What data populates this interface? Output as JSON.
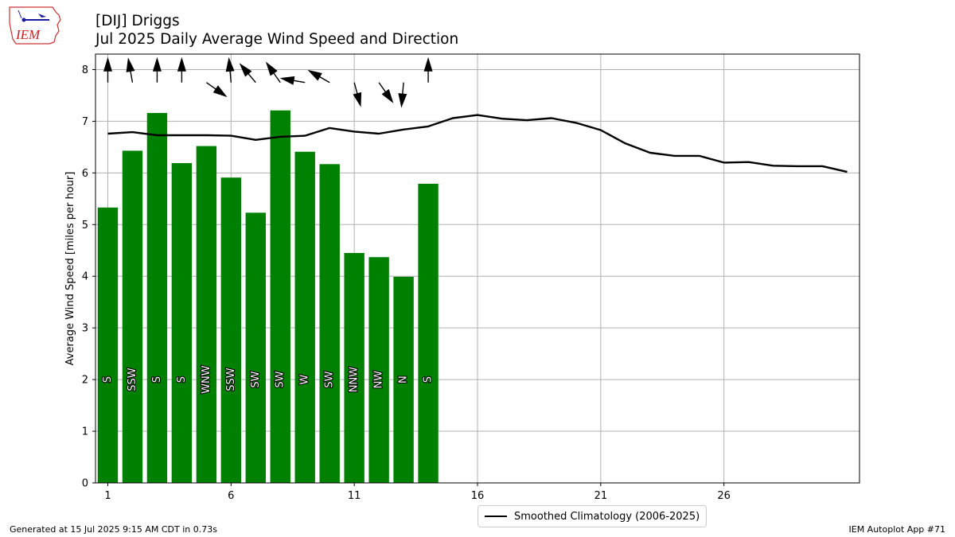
{
  "header": {
    "title_line1": "[DIJ] Driggs",
    "title_line2": "Jul 2025 Daily Average Wind Speed and Direction"
  },
  "logo": {
    "text": "IEM",
    "icon": "iem-iowa-map-logo-icon"
  },
  "footer": {
    "generated": "Generated at 15 Jul 2025 9:15 AM CDT in 0.73s",
    "app": "IEM Autoplot App #71"
  },
  "colors": {
    "bar": "#008000",
    "line": "#000000",
    "grid": "#b0b0b0"
  },
  "chart_data": {
    "type": "bar",
    "ylabel": "Average Wind Speed [miles per hour]",
    "xlabel": "",
    "xlim": [
      0.5,
      31.5
    ],
    "ylim": [
      0,
      8.3
    ],
    "xticks": [
      1,
      6,
      11,
      16,
      21,
      26
    ],
    "yticks": [
      0,
      1,
      2,
      3,
      4,
      5,
      6,
      7,
      8
    ],
    "grid": true,
    "legend_position": "bottom-center",
    "bars": {
      "days": [
        1,
        2,
        3,
        4,
        5,
        6,
        7,
        8,
        9,
        10,
        11,
        12,
        13,
        14
      ],
      "values": [
        5.33,
        6.43,
        7.16,
        6.19,
        6.52,
        5.91,
        5.23,
        7.21,
        6.41,
        6.17,
        4.45,
        4.37,
        3.99,
        5.79
      ],
      "direction_labels": [
        "S",
        "SSW",
        "S",
        "S",
        "WNW",
        "SSW",
        "SW",
        "SW",
        "W",
        "SW",
        "NNW",
        "NW",
        "N",
        "S"
      ],
      "arrow_direction_deg": [
        0,
        -10,
        0,
        0,
        125,
        -5,
        -40,
        -35,
        -80,
        -60,
        165,
        145,
        185,
        0
      ],
      "arrow_speed_mph": [
        5.33,
        6.43,
        7.16,
        6.19,
        6.52,
        5.91,
        5.23,
        7.21,
        6.41,
        6.17,
        4.45,
        4.37,
        3.99,
        5.79
      ]
    },
    "series": [
      {
        "name": "Smoothed Climatology (2006-2025)",
        "type": "line",
        "x": [
          1,
          2,
          3,
          4,
          5,
          6,
          7,
          8,
          9,
          10,
          11,
          12,
          13,
          14,
          15,
          16,
          17,
          18,
          19,
          20,
          21,
          22,
          23,
          24,
          25,
          26,
          27,
          28,
          29,
          30,
          31
        ],
        "values": [
          6.76,
          6.79,
          6.73,
          6.73,
          6.73,
          6.72,
          6.64,
          6.7,
          6.72,
          6.87,
          6.8,
          6.76,
          6.84,
          6.9,
          7.06,
          7.12,
          7.05,
          7.02,
          7.06,
          6.97,
          6.83,
          6.57,
          6.39,
          6.33,
          6.33,
          6.2,
          6.21,
          6.14,
          6.13,
          6.13,
          6.02
        ]
      }
    ]
  }
}
